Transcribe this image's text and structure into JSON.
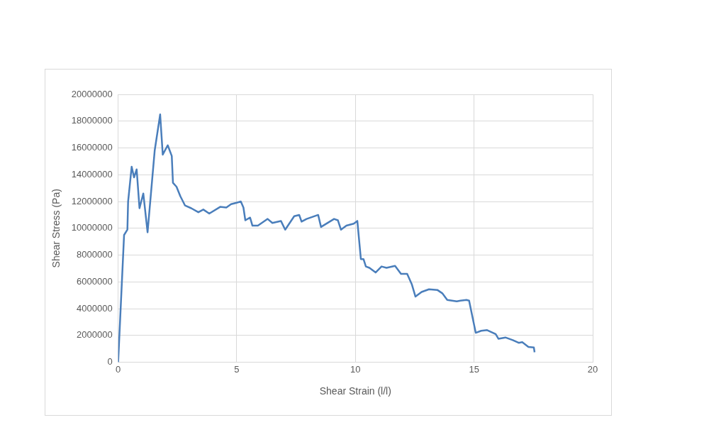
{
  "chart_data": {
    "type": "line",
    "xlabel": "Shear Strain (l/l)",
    "ylabel": "Shear Stress (Pa)",
    "series": [
      {
        "color": "#4a7ebb",
        "x": [
          0,
          0.25,
          0.39,
          0.42,
          0.57,
          0.67,
          0.78,
          0.9,
          1.06,
          1.24,
          1.54,
          1.77,
          1.88,
          2.09,
          2.26,
          2.31,
          2.46,
          2.62,
          2.82,
          3.08,
          3.38,
          3.59,
          3.84,
          4.3,
          4.56,
          4.76,
          4.97,
          5.17,
          5.28,
          5.36,
          5.56,
          5.66,
          5.89,
          6.3,
          6.5,
          6.86,
          7.04,
          7.42,
          7.63,
          7.73,
          7.94,
          8.43,
          8.55,
          9.1,
          9.26,
          9.39,
          9.62,
          9.93,
          10.08,
          10.23,
          10.34,
          10.44,
          10.59,
          10.85,
          11.1,
          11.31,
          11.67,
          11.92,
          12.18,
          12.38,
          12.53,
          12.79,
          13.1,
          13.45,
          13.66,
          13.87,
          14.27,
          14.43,
          14.68,
          14.79,
          15.07,
          15.3,
          15.55,
          15.91,
          16.03,
          16.32,
          16.63,
          16.88,
          17.03,
          17.29,
          17.52,
          17.55
        ],
        "values": [
          0,
          9500000,
          9900000,
          12000000,
          14600000,
          13800000,
          14400000,
          11500000,
          12600000,
          9700000,
          15800000,
          18500000,
          15500000,
          16200000,
          15400000,
          13400000,
          13100000,
          12400000,
          11700000,
          11500000,
          11200000,
          11400000,
          11100000,
          11600000,
          11550000,
          11800000,
          11900000,
          12000000,
          11550000,
          10600000,
          10800000,
          10200000,
          10200000,
          10700000,
          10400000,
          10550000,
          9900000,
          10900000,
          11000000,
          10500000,
          10700000,
          11000000,
          10100000,
          10700000,
          10600000,
          9900000,
          10200000,
          10350000,
          10550000,
          7700000,
          7700000,
          7150000,
          7050000,
          6700000,
          7150000,
          7050000,
          7200000,
          6600000,
          6600000,
          5800000,
          4900000,
          5250000,
          5450000,
          5400000,
          5150000,
          4650000,
          4550000,
          4600000,
          4650000,
          4600000,
          2200000,
          2350000,
          2400000,
          2100000,
          1750000,
          1850000,
          1650000,
          1450000,
          1500000,
          1150000,
          1100000,
          750000
        ]
      }
    ],
    "xlim": [
      0,
      20
    ],
    "xticks": [
      0,
      5,
      10,
      15,
      20
    ],
    "ylim": [
      0,
      20000000
    ],
    "yticks": [
      0,
      2000000,
      4000000,
      6000000,
      8000000,
      10000000,
      12000000,
      14000000,
      16000000,
      18000000,
      20000000
    ],
    "grid": true,
    "legend": false,
    "marker": "none",
    "line_style": "solid"
  }
}
